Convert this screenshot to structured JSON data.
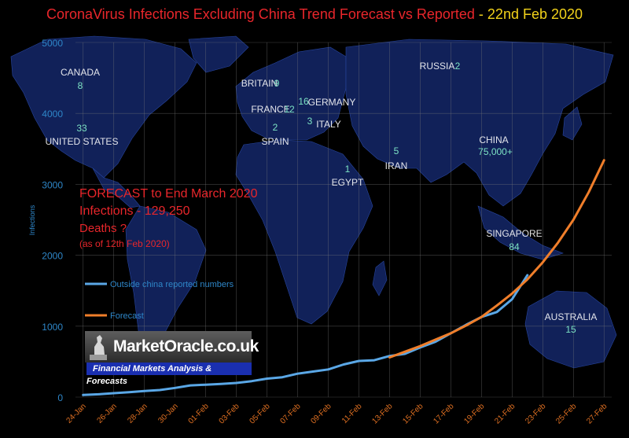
{
  "title": {
    "main": "CoronaVirus Infections Excluding China Trend Forecast vs Reported",
    "date": " - 22nd Feb 2020"
  },
  "forecast_box": {
    "line1": "FORECAST to End March 2020",
    "line2": "Infections - 129,250",
    "line3": "Deaths ?",
    "line4": "(as of 12th Feb  2020)"
  },
  "logo": {
    "brand": "MarketOracle.co.uk",
    "tagline": "Financial Markets Analysis & Forecasts"
  },
  "map_labels": [
    {
      "name": "CANADA",
      "value": "8"
    },
    {
      "name": "UNITED STATES",
      "value": "33"
    },
    {
      "name": "BRITAIN",
      "value": "9"
    },
    {
      "name": "FRANCE",
      "value": "12"
    },
    {
      "name": "GERMANY",
      "value": "16"
    },
    {
      "name": "SPAIN",
      "value": "2"
    },
    {
      "name": "ITALY",
      "value": "3"
    },
    {
      "name": "EGYPT",
      "value": "1"
    },
    {
      "name": "IRAN",
      "value": "5"
    },
    {
      "name": "RUSSIA",
      "value": "2"
    },
    {
      "name": "CHINA",
      "value": "75,000+"
    },
    {
      "name": "SINGAPORE",
      "value": "84"
    },
    {
      "name": "AUSTRALIA",
      "value": "15"
    }
  ],
  "colors": {
    "reported": "#5aa7e6",
    "forecast": "#f07e2a",
    "axis_text": "#2e86c8",
    "xtick_text": "#e07022",
    "title_red": "#e8262b",
    "title_yellow": "#f2d21a",
    "map_fill": "#12235e",
    "map_label": "#ffffff",
    "map_value": "#7de3c4"
  },
  "chart_data": {
    "type": "line",
    "title": "CoronaVirus Infections Excluding China Trend Forecast vs Reported - 22nd Feb 2020",
    "xlabel": "",
    "ylabel": "Infections",
    "ylim": [
      0,
      5000
    ],
    "yticks": [
      0,
      1000,
      2000,
      3000,
      4000,
      5000
    ],
    "x": [
      "24-Jan",
      "25-Jan",
      "26-Jan",
      "27-Jan",
      "28-Jan",
      "29-Jan",
      "30-Jan",
      "31-Jan",
      "01-Feb",
      "02-Feb",
      "03-Feb",
      "04-Feb",
      "05-Feb",
      "06-Feb",
      "07-Feb",
      "08-Feb",
      "09-Feb",
      "10-Feb",
      "11-Feb",
      "12-Feb",
      "13-Feb",
      "14-Feb",
      "15-Feb",
      "16-Feb",
      "17-Feb",
      "18-Feb",
      "19-Feb",
      "20-Feb",
      "21-Feb",
      "22-Feb",
      "23-Feb",
      "24-Feb",
      "25-Feb",
      "26-Feb",
      "27-Feb"
    ],
    "xtick_labels": [
      "24-Jan",
      "26-Jan",
      "28-Jan",
      "30-Jan",
      "01-Feb",
      "03-Feb",
      "05-Feb",
      "07-Feb",
      "09-Feb",
      "11-Feb",
      "13-Feb",
      "15-Feb",
      "17-Feb",
      "19-Feb",
      "21-Feb",
      "23-Feb",
      "25-Feb",
      "27-Feb"
    ],
    "grid": true,
    "legend": "left",
    "series": [
      {
        "name": "Outside china reported numbers",
        "values": [
          30,
          40,
          55,
          70,
          85,
          100,
          130,
          165,
          175,
          185,
          200,
          225,
          260,
          280,
          330,
          360,
          390,
          460,
          510,
          520,
          580,
          610,
          700,
          780,
          900,
          1020,
          1130,
          1200,
          1380,
          1720,
          null,
          null,
          null,
          null,
          null
        ]
      },
      {
        "name": "Forecast",
        "values": [
          null,
          null,
          null,
          null,
          null,
          null,
          null,
          null,
          null,
          null,
          null,
          null,
          null,
          null,
          null,
          null,
          null,
          null,
          null,
          null,
          560,
          640,
          720,
          810,
          900,
          1010,
          1130,
          1290,
          1460,
          1660,
          1900,
          2180,
          2500,
          2890,
          3340
        ]
      }
    ]
  }
}
